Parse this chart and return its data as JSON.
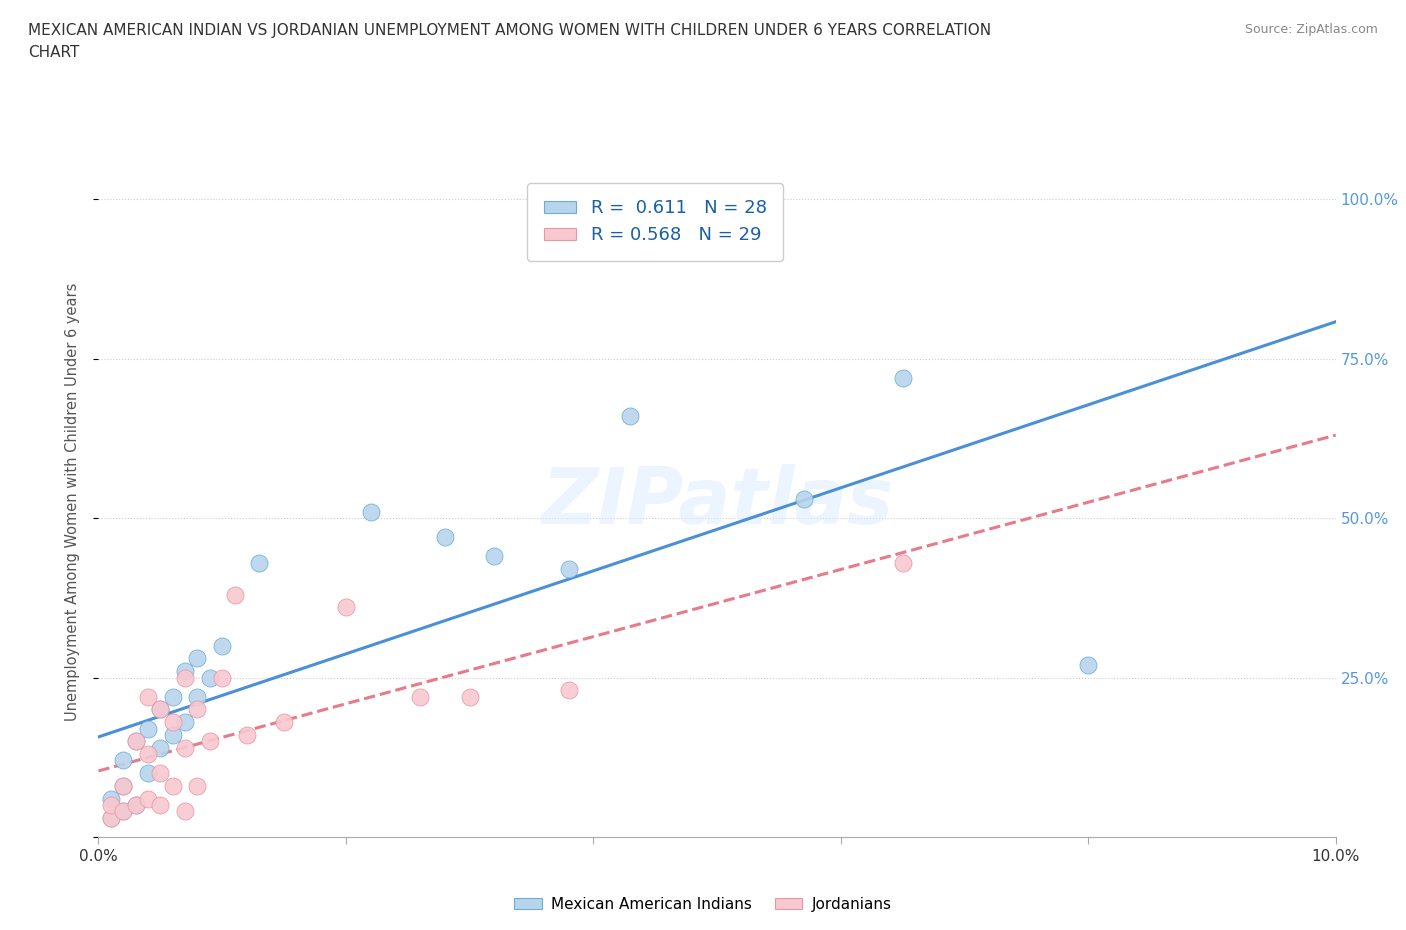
{
  "title_line1": "MEXICAN AMERICAN INDIAN VS JORDANIAN UNEMPLOYMENT AMONG WOMEN WITH CHILDREN UNDER 6 YEARS CORRELATION",
  "title_line2": "CHART",
  "source": "Source: ZipAtlas.com",
  "ylabel": "Unemployment Among Women with Children Under 6 years",
  "xlim": [
    0.0,
    0.1
  ],
  "ylim": [
    0.0,
    1.05
  ],
  "x_ticks": [
    0.0,
    0.02,
    0.04,
    0.06,
    0.08,
    0.1
  ],
  "x_tick_labels": [
    "0.0%",
    "",
    "",
    "",
    "",
    "10.0%"
  ],
  "y_ticks": [
    0.0,
    0.25,
    0.5,
    0.75,
    1.0
  ],
  "y_tick_labels": [
    "",
    "25.0%",
    "50.0%",
    "75.0%",
    "100.0%"
  ],
  "background_color": "#ffffff",
  "series": [
    {
      "name": "Mexican American Indians",
      "R": 0.611,
      "N": 28,
      "color": "#b8d4ec",
      "edge_color": "#6aaed6",
      "line_color": "#4a90d9",
      "line_style": "-",
      "x": [
        0.001,
        0.001,
        0.002,
        0.002,
        0.002,
        0.003,
        0.003,
        0.004,
        0.004,
        0.005,
        0.005,
        0.006,
        0.006,
        0.007,
        0.007,
        0.008,
        0.008,
        0.009,
        0.01,
        0.013,
        0.022,
        0.028,
        0.032,
        0.038,
        0.043,
        0.057,
        0.065,
        0.08
      ],
      "y": [
        0.03,
        0.06,
        0.04,
        0.08,
        0.12,
        0.05,
        0.15,
        0.1,
        0.17,
        0.14,
        0.2,
        0.16,
        0.22,
        0.18,
        0.26,
        0.22,
        0.28,
        0.25,
        0.3,
        0.43,
        0.51,
        0.47,
        0.44,
        0.42,
        0.66,
        0.53,
        0.72,
        0.27
      ]
    },
    {
      "name": "Jordanians",
      "R": 0.568,
      "N": 29,
      "color": "#f8c8d0",
      "edge_color": "#e896a4",
      "line_color": "#e87a8a",
      "line_style": "--",
      "x": [
        0.001,
        0.001,
        0.002,
        0.002,
        0.003,
        0.003,
        0.004,
        0.004,
        0.004,
        0.005,
        0.005,
        0.005,
        0.006,
        0.006,
        0.007,
        0.007,
        0.007,
        0.008,
        0.008,
        0.009,
        0.01,
        0.011,
        0.012,
        0.015,
        0.02,
        0.026,
        0.03,
        0.038,
        0.065
      ],
      "y": [
        0.03,
        0.05,
        0.04,
        0.08,
        0.05,
        0.15,
        0.06,
        0.13,
        0.22,
        0.05,
        0.1,
        0.2,
        0.08,
        0.18,
        0.04,
        0.14,
        0.25,
        0.08,
        0.2,
        0.15,
        0.25,
        0.38,
        0.16,
        0.18,
        0.36,
        0.22,
        0.22,
        0.23,
        0.43
      ]
    }
  ],
  "legend_items": [
    {
      "label": "R =  0.611   N = 28",
      "face": "#b8d4ec",
      "edge": "#6aaed6"
    },
    {
      "label": "R = 0.568   N = 29",
      "face": "#f8c8d0",
      "edge": "#e896a4"
    }
  ],
  "bottom_legend": [
    {
      "label": "Mexican American Indians",
      "face": "#b8d4ec",
      "edge": "#6aaed6"
    },
    {
      "label": "Jordanians",
      "face": "#f8c8d0",
      "edge": "#e896a4"
    }
  ]
}
